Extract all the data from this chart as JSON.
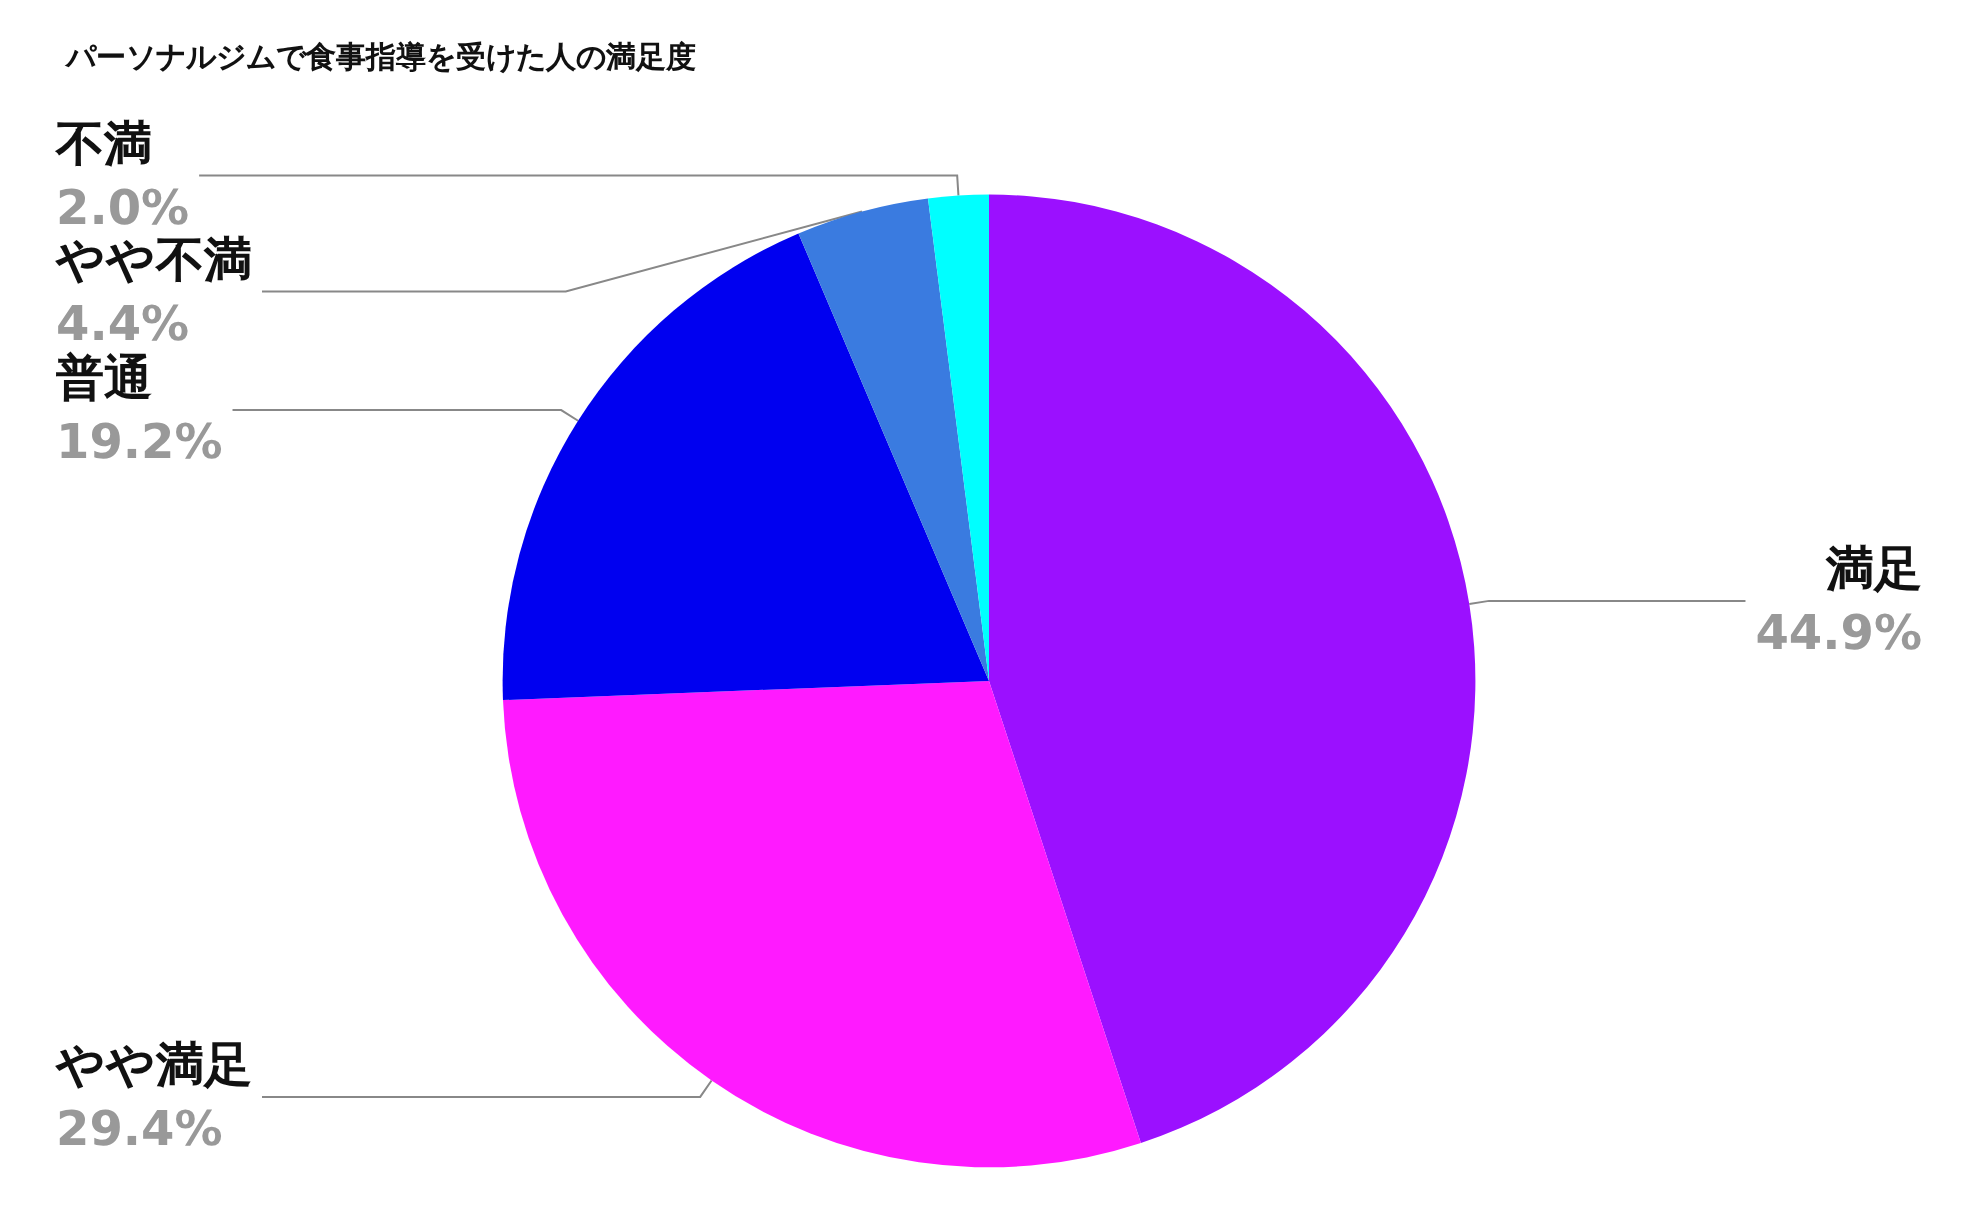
{
  "chart_data": {
    "type": "pie",
    "title": "パーソナルジムで食事指導を受けた人の満足度",
    "categories": [
      "満足",
      "やや満足",
      "普通",
      "やや不満",
      "不満"
    ],
    "values": [
      44.9,
      29.4,
      19.2,
      4.4,
      2.0
    ],
    "value_labels": [
      "44.9%",
      "29.4%",
      "19.2%",
      "4.4%",
      "2.0%"
    ],
    "colors": [
      "#9b10ff",
      "#ff1aff",
      "#0000f0",
      "#3a7be0",
      "#00ffff"
    ],
    "legend": false
  }
}
